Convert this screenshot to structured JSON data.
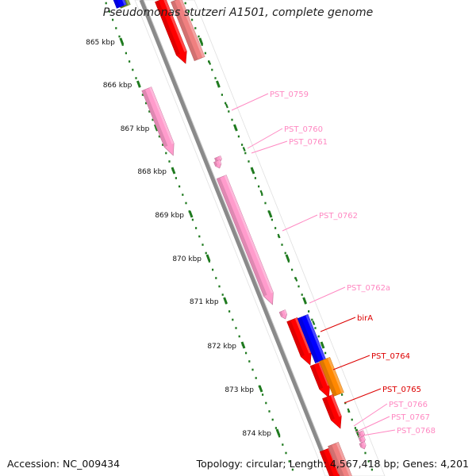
{
  "title": "Pseudomonas stutzeri A1501, complete genome",
  "footer": {
    "accession": "Accession: NC_009434",
    "topology": "Topology: circular; Length: 4,567,418 bp; Genes: 4,201"
  },
  "colors": {
    "backbone": "#8a8a8a",
    "tick": "#1f7a1f",
    "pseudo": "#ff9ccc",
    "gene": "#ff0000",
    "blue": "#0000ff",
    "orange": "#ff8800",
    "olive": "#6b8e23"
  },
  "ruler_labels": [
    "865 kbp",
    "866 kbp",
    "867 kbp",
    "868 kbp",
    "869 kbp",
    "870 kbp",
    "871 kbp",
    "872 kbp",
    "873 kbp",
    "874 kbp"
  ],
  "gene_labels": [
    {
      "text": "PST_0759",
      "color": "#ff88c2"
    },
    {
      "text": "PST_0760",
      "color": "#ff88c2"
    },
    {
      "text": "PST_0761",
      "color": "#ff88c2"
    },
    {
      "text": "PST_0762",
      "color": "#ff88c2"
    },
    {
      "text": "PST_0762a",
      "color": "#ff88c2"
    },
    {
      "text": "birA",
      "color": "#dd0000"
    },
    {
      "text": "PST_0764",
      "color": "#dd0000"
    },
    {
      "text": "PST_0765",
      "color": "#dd0000"
    },
    {
      "text": "PST_0766",
      "color": "#ff88c2"
    },
    {
      "text": "PST_0767",
      "color": "#ff88c2"
    },
    {
      "text": "PST_0768",
      "color": "#ff88c2"
    }
  ]
}
